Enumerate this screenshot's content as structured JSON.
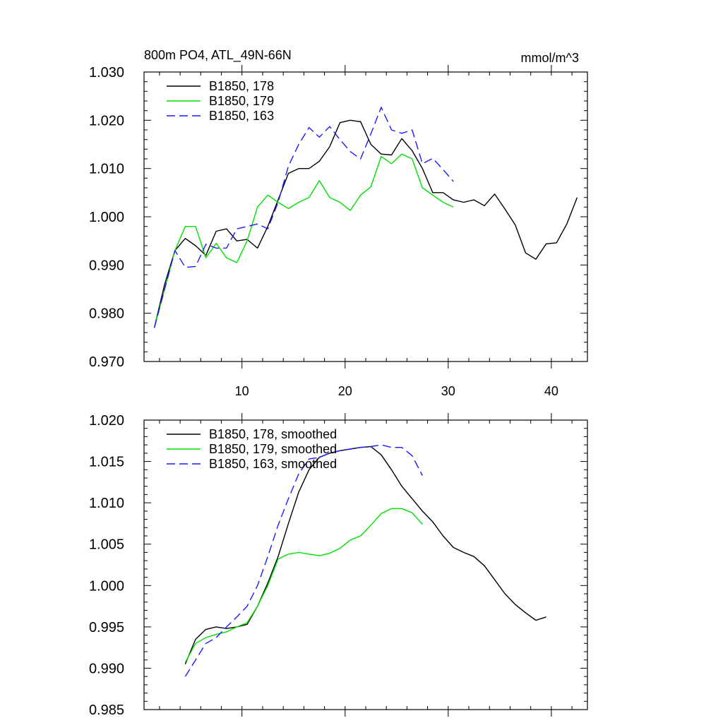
{
  "figure": {
    "title": "800m PO4, ATL_49N-66N",
    "units": "mmol/m^3"
  },
  "chart_data": [
    {
      "type": "line",
      "title": "800m PO4, ATL_49N-66N",
      "units": "mmol/m^3",
      "xlabel": "",
      "ylabel": "",
      "xlim": [
        0.5,
        43.5
      ],
      "ylim": [
        0.97,
        1.03
      ],
      "xticks": [
        10,
        20,
        30,
        40
      ],
      "xtick_labels": [
        "10",
        "20",
        "30",
        "40"
      ],
      "yticks": [
        0.97,
        0.98,
        0.99,
        1.0,
        1.01,
        1.02,
        1.03
      ],
      "ytick_labels": [
        "0.970",
        "0.980",
        "0.990",
        "1.000",
        "1.010",
        "1.020",
        "1.030"
      ],
      "legend_position": "top-left",
      "series": [
        {
          "name": "B1850, 178",
          "color": "#000000",
          "dash": "solid",
          "x": [
            1.5,
            2.5,
            3.5,
            4.5,
            5.5,
            6.5,
            7.5,
            8.5,
            9.5,
            10.5,
            11.5,
            12.5,
            13.5,
            14.5,
            15.5,
            16.5,
            17.5,
            18.5,
            19.5,
            20.5,
            21.5,
            22.5,
            23.5,
            24.5,
            25.5,
            26.5,
            27.5,
            28.5,
            29.5,
            30.5,
            31.5,
            32.5,
            33.5,
            34.5,
            35.5,
            36.5,
            37.5,
            38.5,
            39.5,
            40.5,
            41.5,
            42.5
          ],
          "values": [
            0.977,
            0.986,
            0.993,
            0.9955,
            0.994,
            0.992,
            0.997,
            0.9975,
            0.995,
            0.9953,
            0.9935,
            0.998,
            1.0035,
            1.009,
            1.01,
            1.01,
            1.0115,
            1.0145,
            1.0195,
            1.02,
            1.0197,
            1.015,
            1.013,
            1.0128,
            1.0162,
            1.0137,
            1.01,
            1.005,
            1.005,
            1.0035,
            1.003,
            1.0035,
            1.0023,
            1.0047,
            1.0016,
            0.9983,
            0.9925,
            0.9912,
            0.9944,
            0.9946,
            0.9985,
            1.004
          ]
        },
        {
          "name": "B1850, 179",
          "color": "#00e000",
          "dash": "solid",
          "x": [
            1.5,
            2.5,
            3.5,
            4.5,
            5.5,
            6.5,
            7.5,
            8.5,
            9.5,
            10.5,
            11.5,
            12.5,
            13.5,
            14.5,
            15.5,
            16.5,
            17.5,
            18.5,
            19.5,
            20.5,
            21.5,
            22.5,
            23.5,
            24.5,
            25.5,
            26.5,
            27.5,
            28.5,
            29.5,
            30.5
          ],
          "values": [
            0.977,
            0.985,
            0.993,
            0.998,
            0.998,
            0.9915,
            0.9945,
            0.9915,
            0.9905,
            0.995,
            1.002,
            1.0045,
            1.003,
            1.0017,
            1.003,
            1.004,
            1.0075,
            1.004,
            1.003,
            1.0013,
            1.0045,
            1.0062,
            1.0125,
            1.011,
            1.013,
            1.012,
            1.006,
            1.0045,
            1.003,
            1.002
          ]
        },
        {
          "name": "B1850, 163",
          "color": "#1a1aff",
          "dash": "dashed",
          "x": [
            1.5,
            2.5,
            3.5,
            4.5,
            5.5,
            6.5,
            7.5,
            8.5,
            9.5,
            10.5,
            11.5,
            12.5,
            13.5,
            14.5,
            15.5,
            16.5,
            17.5,
            18.5,
            19.5,
            20.5,
            21.5,
            22.5,
            23.5,
            24.5,
            25.5,
            26.5,
            27.5,
            28.5,
            29.5,
            30.5
          ],
          "values": [
            0.977,
            0.985,
            0.993,
            0.9895,
            0.9897,
            0.9943,
            0.9935,
            0.9935,
            0.9975,
            0.998,
            0.9985,
            0.9975,
            1.003,
            1.0105,
            1.015,
            1.0185,
            1.0165,
            1.0187,
            1.016,
            1.0135,
            1.012,
            1.0172,
            1.0227,
            1.018,
            1.0173,
            1.018,
            1.011,
            1.0121,
            1.0098,
            1.0073
          ]
        }
      ]
    },
    {
      "type": "line",
      "title": "",
      "xlabel": "",
      "ylabel": "",
      "xlim": [
        0.5,
        43.5
      ],
      "ylim": [
        0.985,
        1.02
      ],
      "xticks": [
        10,
        20,
        30,
        40
      ],
      "xtick_labels": [],
      "yticks": [
        0.985,
        0.99,
        0.995,
        1.0,
        1.005,
        1.01,
        1.015,
        1.02
      ],
      "ytick_labels": [
        "0.985",
        "0.990",
        "0.995",
        "1.000",
        "1.005",
        "1.010",
        "1.015",
        "1.020"
      ],
      "legend_position": "top-left",
      "series": [
        {
          "name": "B1850, 178, smoothed",
          "color": "#000000",
          "dash": "solid",
          "x": [
            4.5,
            5.5,
            6.5,
            7.5,
            8.5,
            9.5,
            10.5,
            11.5,
            12.5,
            13.5,
            14.5,
            15.5,
            16.5,
            17.5,
            18.5,
            19.5,
            20.5,
            21.5,
            22.5,
            23.5,
            24.5,
            25.5,
            26.5,
            27.5,
            28.5,
            29.5,
            30.5,
            31.5,
            32.5,
            33.5,
            34.5,
            35.5,
            36.5,
            37.5,
            38.5,
            39.5
          ],
          "values": [
            0.9905,
            0.9935,
            0.9947,
            0.995,
            0.9948,
            0.995,
            0.9953,
            0.9975,
            1.0003,
            1.0035,
            1.0075,
            1.0113,
            1.014,
            1.0155,
            1.016,
            1.0163,
            1.0165,
            1.0167,
            1.0168,
            1.0158,
            1.014,
            1.012,
            1.0105,
            1.009,
            1.0077,
            1.006,
            1.0046,
            1.004,
            1.0035,
            1.0024,
            1.0007,
            0.999,
            0.9977,
            0.9967,
            0.9958,
            0.9962
          ]
        },
        {
          "name": "B1850, 179, smoothed",
          "color": "#00e000",
          "dash": "solid",
          "x": [
            4.5,
            5.5,
            6.5,
            7.5,
            8.5,
            9.5,
            10.5,
            11.5,
            12.5,
            13.5,
            14.5,
            15.5,
            16.5,
            17.5,
            18.5,
            19.5,
            20.5,
            21.5,
            22.5,
            23.5,
            24.5,
            25.5,
            26.5,
            27.5
          ],
          "values": [
            0.9907,
            0.993,
            0.9937,
            0.9941,
            0.9944,
            0.995,
            0.9955,
            0.9975,
            1.0,
            1.0032,
            1.0038,
            1.004,
            1.0038,
            1.0036,
            1.0039,
            1.0045,
            1.0055,
            1.006,
            1.0073,
            1.0087,
            1.0093,
            1.0093,
            1.0088,
            1.0074
          ]
        },
        {
          "name": "B1850, 163, smoothed",
          "color": "#1a1aff",
          "dash": "dashed",
          "x": [
            4.5,
            5.5,
            6.5,
            7.5,
            8.5,
            9.5,
            10.5,
            11.5,
            12.5,
            13.5,
            14.5,
            15.5,
            16.5,
            17.5,
            18.5,
            19.5,
            20.5,
            21.5,
            22.5,
            23.5,
            24.5,
            25.5,
            26.5,
            27.5
          ],
          "values": [
            0.989,
            0.991,
            0.993,
            0.9937,
            0.995,
            0.9962,
            0.9975,
            1.0,
            1.0035,
            1.0073,
            1.0105,
            1.0135,
            1.0153,
            1.0155,
            1.016,
            1.0163,
            1.0165,
            1.0167,
            1.0168,
            1.017,
            1.0167,
            1.0167,
            1.0157,
            1.0133
          ]
        }
      ]
    }
  ]
}
